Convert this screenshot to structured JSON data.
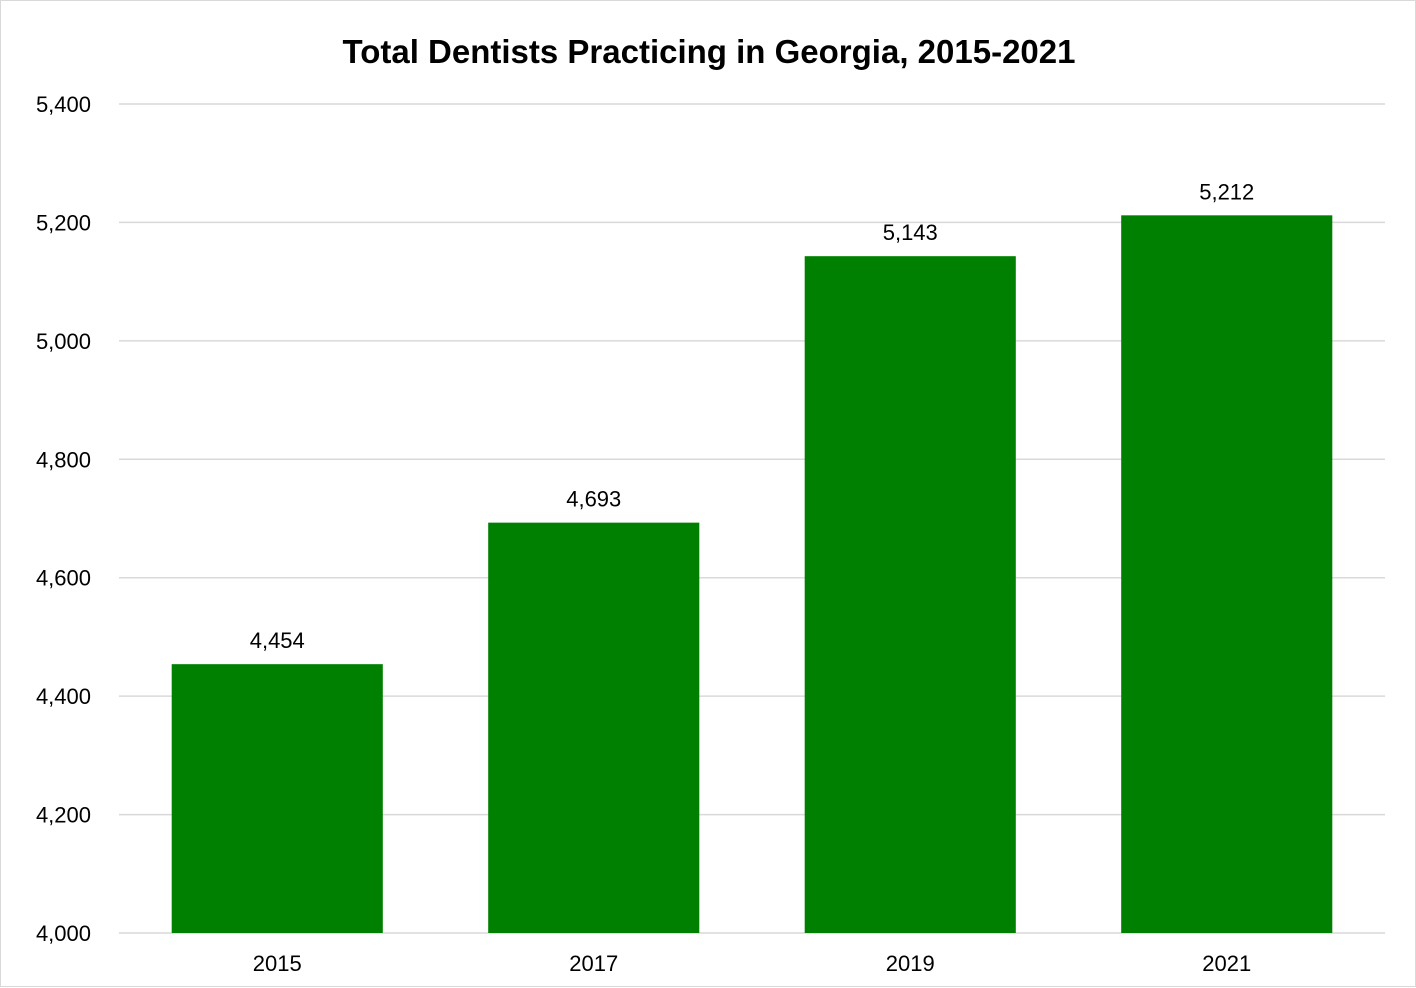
{
  "chart_data": {
    "type": "bar",
    "title": "Total Dentists Practicing in Georgia, 2015-2021",
    "xlabel": "",
    "ylabel": "",
    "categories": [
      "2015",
      "2017",
      "2019",
      "2021"
    ],
    "series": [
      {
        "values": [
          4454,
          4693,
          5143,
          5212
        ],
        "data_labels": [
          "4,454",
          "4,693",
          "5,143",
          "5,212"
        ],
        "color": "#008000"
      }
    ],
    "ylim": [
      4000,
      5400
    ],
    "y_ticks": [
      4000,
      4200,
      4400,
      4600,
      4800,
      5000,
      5200,
      5400
    ],
    "y_tick_labels": [
      "4,000",
      "4,200",
      "4,400",
      "4,600",
      "4,800",
      "5,000",
      "5,200",
      "5,400"
    ],
    "grid": true,
    "legend": "none",
    "colors": {
      "bar": "#008000",
      "gridline": "#d9d9d9",
      "text": "#000000"
    }
  }
}
